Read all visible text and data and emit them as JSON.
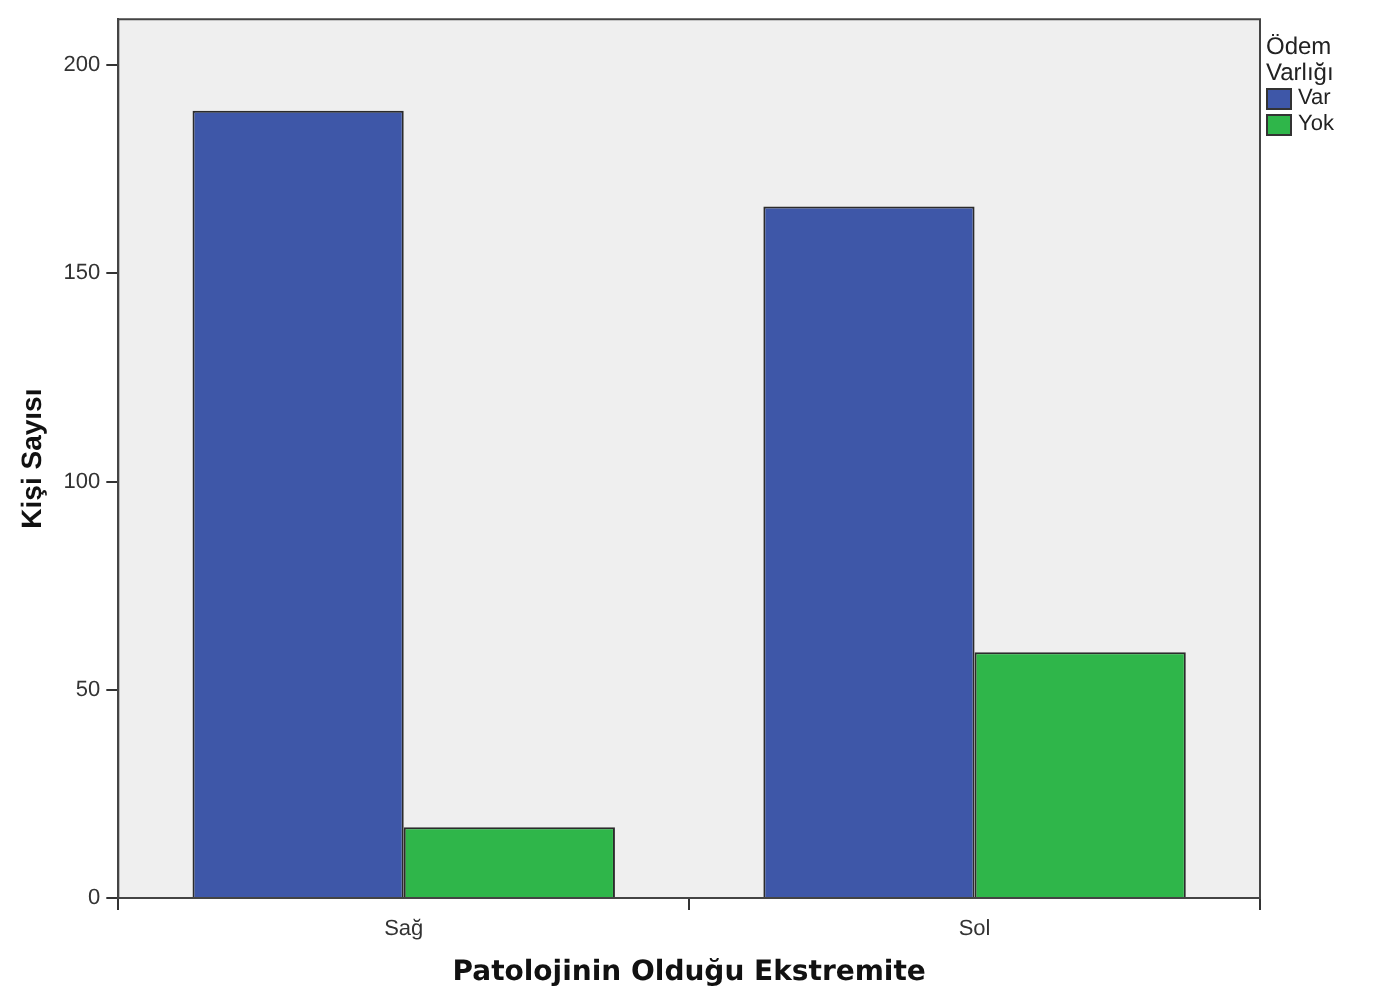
{
  "chart_data": {
    "type": "bar",
    "xlabel": "Patolojinin Olduğu Ekstremite",
    "ylabel": "Kişi Sayısı",
    "legend_title": "Ödem Varlığı",
    "categories": [
      "Sağ",
      "Sol"
    ],
    "series": [
      {
        "name": "Var",
        "color": "#3e57a8",
        "values": [
          189,
          166
        ]
      },
      {
        "name": "Yok",
        "color": "#2fb64a",
        "values": [
          17,
          59
        ]
      }
    ],
    "ylim": [
      0,
      211
    ],
    "yticks": [
      0,
      50,
      100,
      150,
      200
    ],
    "grid": false,
    "legend": "top right"
  }
}
